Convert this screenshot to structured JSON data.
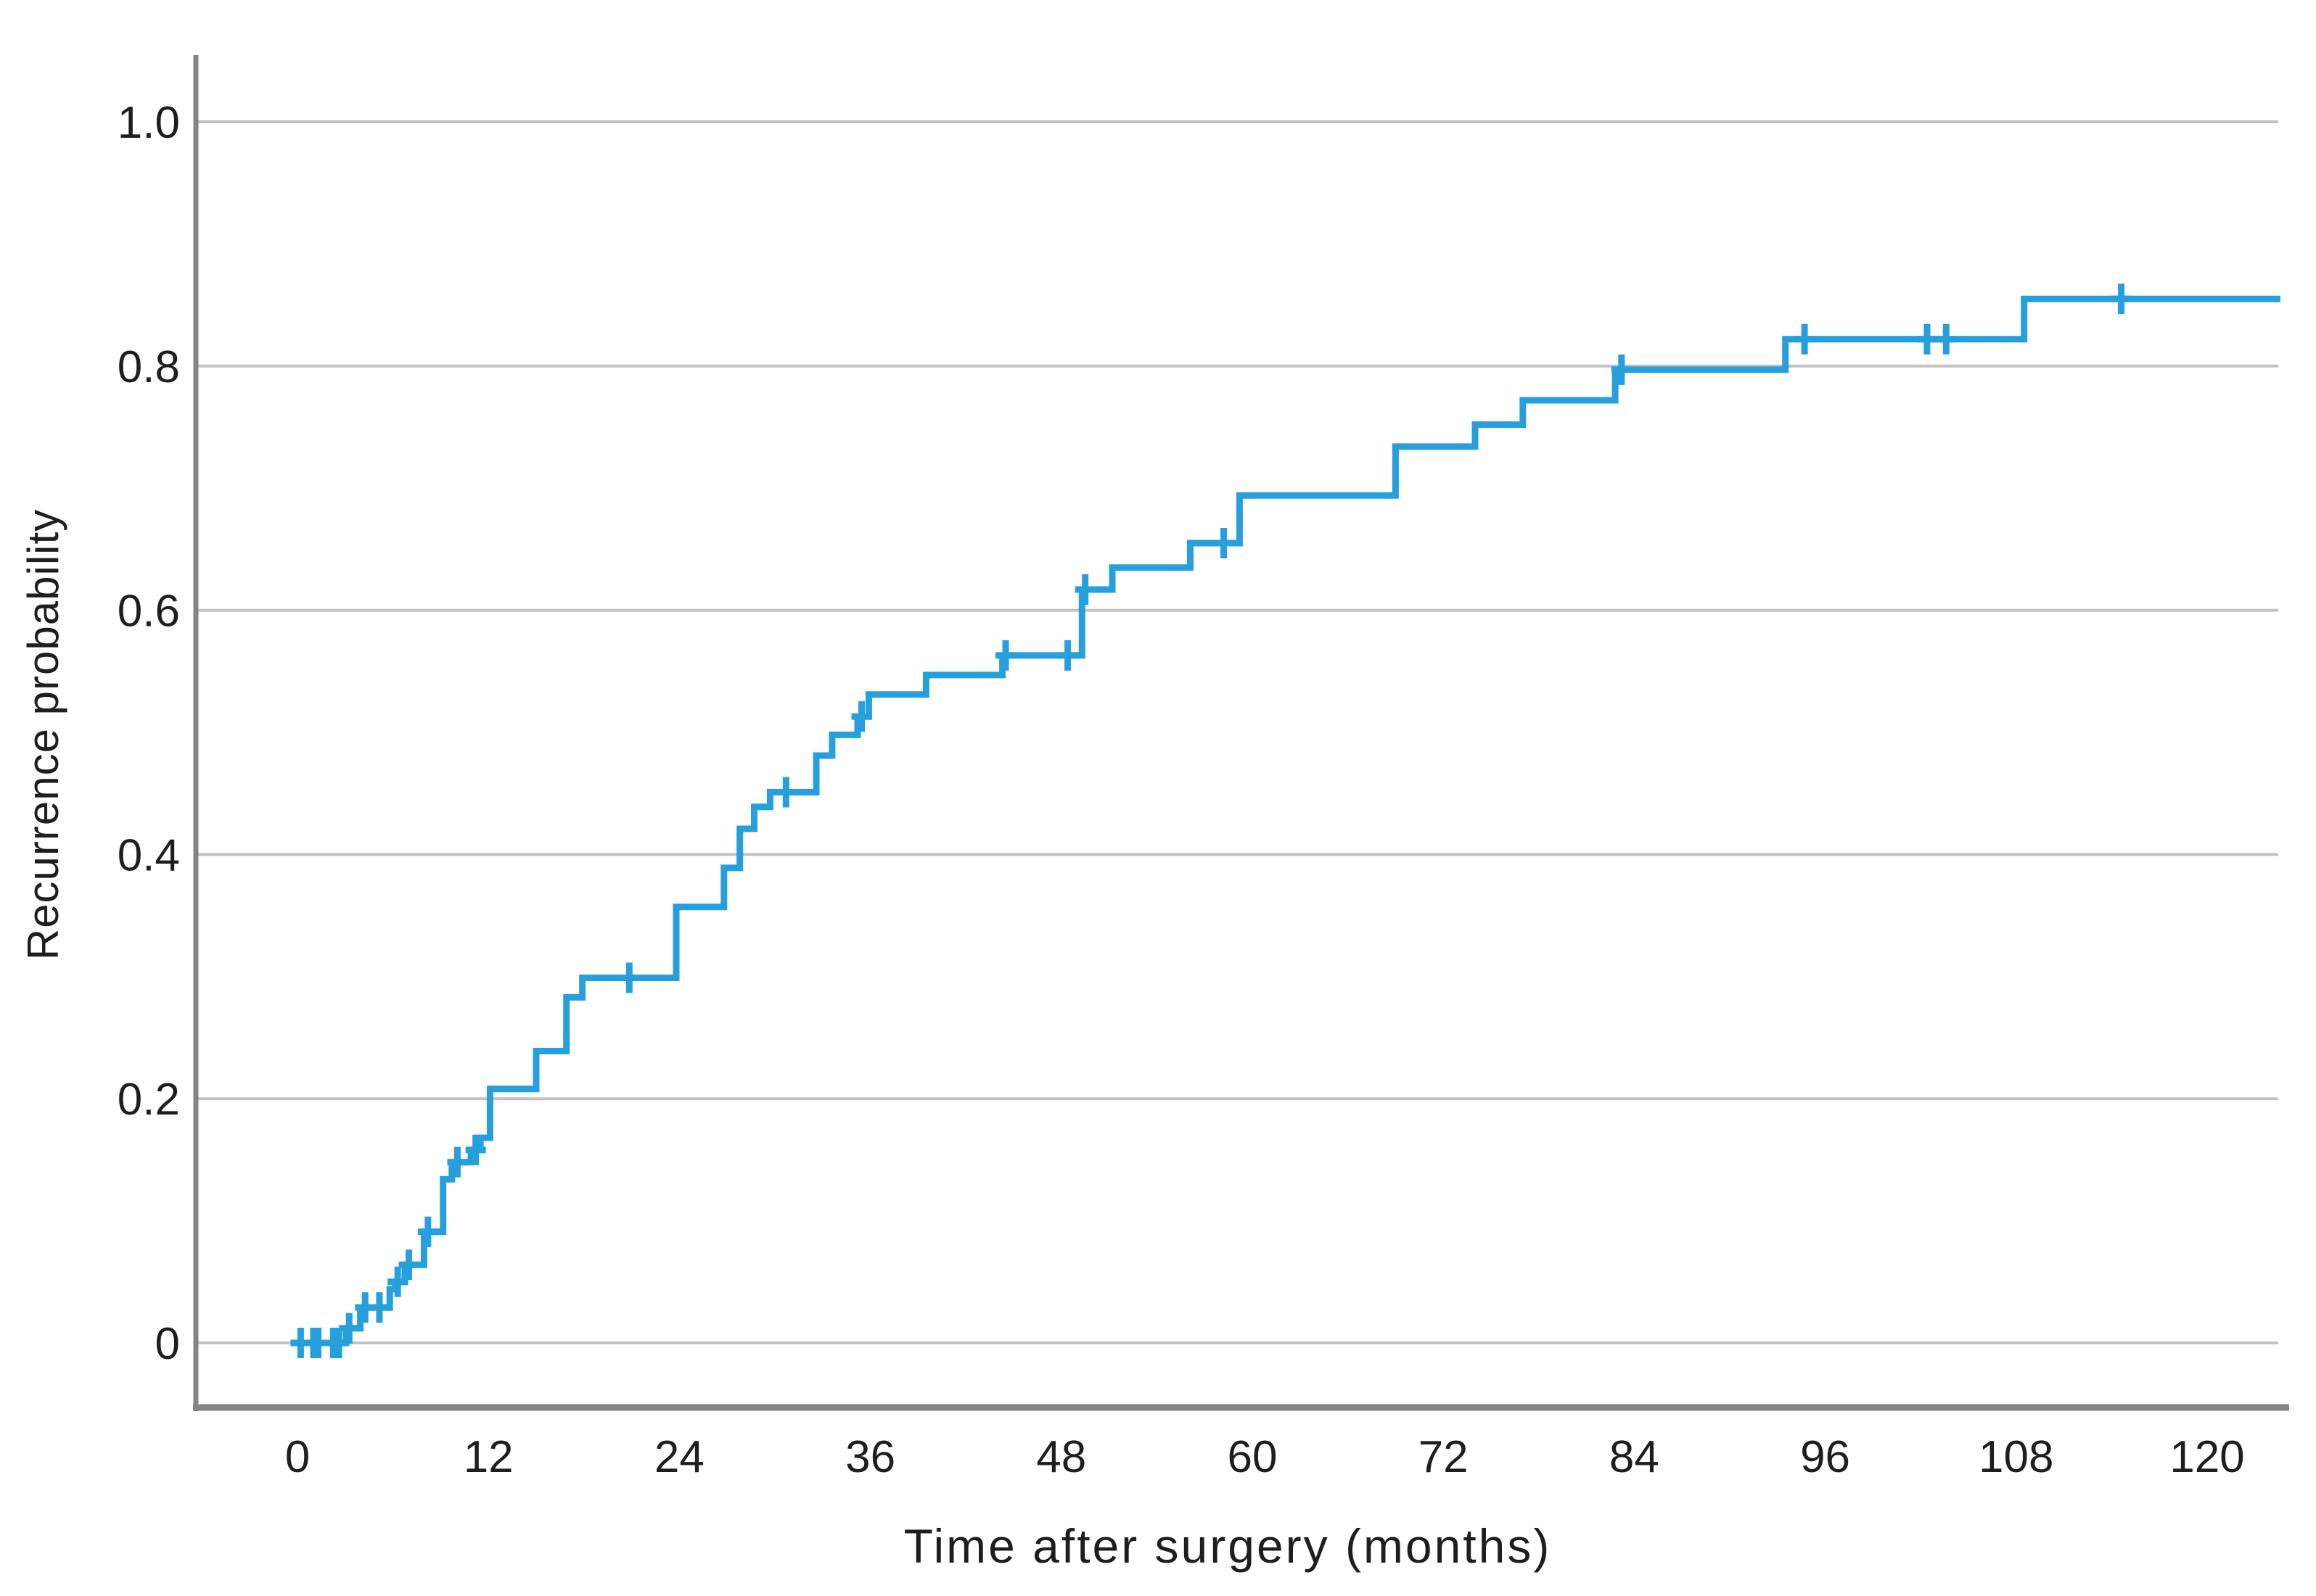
{
  "chart_data": {
    "type": "line",
    "subtype": "kaplan-meier-cumulative-incidence-step",
    "title": "",
    "xlabel": "Time after surgery (months)",
    "ylabel": "Recurrence probability",
    "xlim": [
      -6.4,
      126.8
    ],
    "ylim": [
      -0.053,
      1.055
    ],
    "grid": true,
    "legend": false,
    "x_ticks": [
      {
        "value": 0,
        "label": "0"
      },
      {
        "value": 12,
        "label": "12"
      },
      {
        "value": 24,
        "label": "24"
      },
      {
        "value": 36,
        "label": "36"
      },
      {
        "value": 48,
        "label": "48"
      },
      {
        "value": 60,
        "label": "60"
      },
      {
        "value": 72,
        "label": "72"
      },
      {
        "value": 84,
        "label": "84"
      },
      {
        "value": 96,
        "label": "96"
      },
      {
        "value": 108,
        "label": "108"
      },
      {
        "value": 120,
        "label": "120"
      }
    ],
    "y_ticks": [
      {
        "value": 0.0,
        "label": "0"
      },
      {
        "value": 0.2,
        "label": "0.2"
      },
      {
        "value": 0.4,
        "label": "0.4"
      },
      {
        "value": 0.6,
        "label": "0.6"
      },
      {
        "value": 0.8,
        "label": "0.8"
      },
      {
        "value": 1.0,
        "label": "1.0"
      }
    ],
    "series": [
      {
        "name": "Recurrence probability",
        "style": "step-post",
        "end_month": 124.6,
        "steps": [
          [
            0,
            0.0
          ],
          [
            3.05,
            0.012
          ],
          [
            3.95,
            0.029
          ],
          [
            5.8,
            0.044
          ],
          [
            6.15,
            0.05
          ],
          [
            6.75,
            0.064
          ],
          [
            7.95,
            0.091
          ],
          [
            9.15,
            0.134
          ],
          [
            9.7,
            0.148
          ],
          [
            10.9,
            0.158
          ],
          [
            11.5,
            0.168
          ],
          [
            12.1,
            0.208
          ],
          [
            15.0,
            0.239
          ],
          [
            16.9,
            0.283
          ],
          [
            17.9,
            0.299
          ],
          [
            23.8,
            0.357
          ],
          [
            26.8,
            0.389
          ],
          [
            27.8,
            0.421
          ],
          [
            28.7,
            0.439
          ],
          [
            29.7,
            0.451
          ],
          [
            32.6,
            0.481
          ],
          [
            33.6,
            0.498
          ],
          [
            35.2,
            0.513
          ],
          [
            35.9,
            0.531
          ],
          [
            39.5,
            0.547
          ],
          [
            44.3,
            0.563
          ],
          [
            49.3,
            0.617
          ],
          [
            51.2,
            0.635
          ],
          [
            56.1,
            0.655
          ],
          [
            59.2,
            0.694
          ],
          [
            69.0,
            0.734
          ],
          [
            74.0,
            0.752
          ],
          [
            77.0,
            0.772
          ],
          [
            82.8,
            0.797
          ],
          [
            93.5,
            0.822
          ],
          [
            108.5,
            0.855
          ]
        ],
        "censor_marks": [
          [
            0.2,
            0.0
          ],
          [
            1.0,
            0.0
          ],
          [
            1.3,
            0.0
          ],
          [
            2.25,
            0.0
          ],
          [
            2.6,
            0.0
          ],
          [
            3.25,
            0.012
          ],
          [
            4.25,
            0.029
          ],
          [
            5.15,
            0.029
          ],
          [
            6.3,
            0.05
          ],
          [
            7.0,
            0.064
          ],
          [
            8.2,
            0.091
          ],
          [
            10.05,
            0.148
          ],
          [
            11.2,
            0.158
          ],
          [
            20.85,
            0.299
          ],
          [
            30.7,
            0.451
          ],
          [
            35.45,
            0.513
          ],
          [
            44.5,
            0.563
          ],
          [
            48.4,
            0.563
          ],
          [
            49.5,
            0.617
          ],
          [
            58.2,
            0.655
          ],
          [
            83.2,
            0.797
          ],
          [
            94.7,
            0.822
          ],
          [
            102.4,
            0.822
          ],
          [
            103.6,
            0.822
          ],
          [
            114.6,
            0.855
          ]
        ]
      }
    ],
    "colors": {
      "curve": "#269fdc",
      "gridline": "#c2c2c2",
      "axis_line": "#858585",
      "text": "#1e1e1e",
      "background": "#ffffff"
    }
  }
}
